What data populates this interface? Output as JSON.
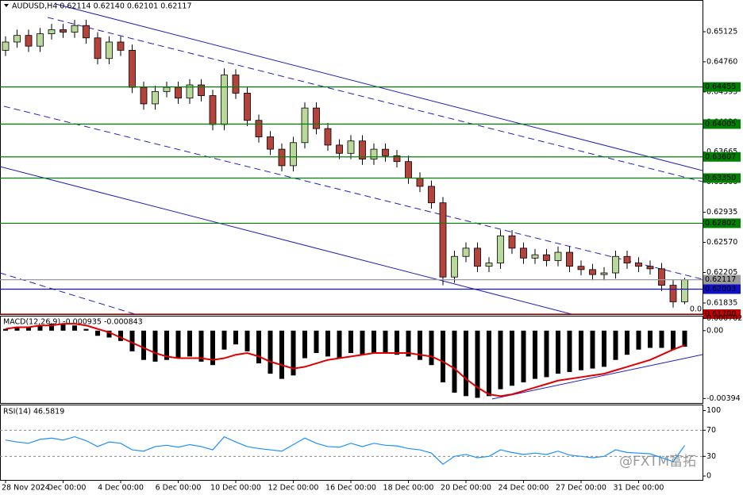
{
  "chart_data": [
    {
      "type": "candlestick",
      "title": "AUDUSD,H4  0.62114 0.62140 0.62101 0.62117",
      "corner_label": "0.0",
      "watermark": "@FXTM富拓",
      "categories": [
        "28 Nov 2024",
        null,
        null,
        null,
        null,
        "2 Dec 00:00",
        null,
        null,
        null,
        null,
        "4 Dec 00:00",
        null,
        null,
        null,
        null,
        "6 Dec 00:00",
        null,
        null,
        null,
        null,
        "10 Dec 00:00",
        null,
        null,
        null,
        null,
        "12 Dec 00:00",
        null,
        null,
        null,
        null,
        "16 Dec 00:00",
        null,
        null,
        null,
        null,
        "18 Dec 00:00",
        null,
        null,
        null,
        null,
        "20 Dec 00:00",
        null,
        null,
        null,
        null,
        "24 Dec 00:00",
        null,
        null,
        null,
        null,
        "27 Dec 00:00",
        null,
        null,
        null,
        null,
        "31 Dec 00:00",
        null,
        null,
        null,
        null
      ],
      "open": [
        0.649,
        0.65,
        0.6508,
        0.6495,
        0.651,
        0.6515,
        0.6512,
        0.652,
        0.6505,
        0.648,
        0.65,
        0.649,
        0.6445,
        0.6425,
        0.644,
        0.6445,
        0.6432,
        0.6448,
        0.6435,
        0.64,
        0.646,
        0.6438,
        0.6405,
        0.6385,
        0.637,
        0.635,
        0.6378,
        0.642,
        0.6395,
        0.6375,
        0.6365,
        0.638,
        0.6358,
        0.637,
        0.6362,
        0.6355,
        0.6335,
        0.6325,
        0.6305,
        0.6215,
        0.624,
        0.625,
        0.6228,
        0.6232,
        0.6265,
        0.625,
        0.6238,
        0.6242,
        0.6235,
        0.6245,
        0.6228,
        0.6224,
        0.6218,
        0.622,
        0.624,
        0.6232,
        0.6228,
        0.6225,
        0.6205,
        0.6185
      ],
      "high": [
        0.6507,
        0.6515,
        0.6515,
        0.6517,
        0.6522,
        0.6522,
        0.6527,
        0.6527,
        0.6512,
        0.6507,
        0.6507,
        0.6497,
        0.6452,
        0.6447,
        0.6452,
        0.6452,
        0.6455,
        0.6455,
        0.6442,
        0.6468,
        0.6467,
        0.6445,
        0.6412,
        0.6392,
        0.6377,
        0.6385,
        0.6427,
        0.6427,
        0.6402,
        0.6382,
        0.6387,
        0.6387,
        0.6377,
        0.6377,
        0.6369,
        0.6362,
        0.6342,
        0.6332,
        0.6312,
        0.6247,
        0.6257,
        0.6257,
        0.6239,
        0.6272,
        0.6272,
        0.6257,
        0.6249,
        0.6249,
        0.6252,
        0.6252,
        0.6235,
        0.6231,
        0.6227,
        0.6247,
        0.6247,
        0.6239,
        0.6235,
        0.6232,
        0.6212,
        0.6214
      ],
      "low": [
        0.6483,
        0.6493,
        0.6488,
        0.6488,
        0.6503,
        0.6505,
        0.6505,
        0.6498,
        0.6473,
        0.6473,
        0.6483,
        0.6438,
        0.6418,
        0.6418,
        0.6433,
        0.6425,
        0.6425,
        0.6428,
        0.6393,
        0.6393,
        0.6431,
        0.6398,
        0.6378,
        0.6363,
        0.6343,
        0.6343,
        0.6371,
        0.6388,
        0.6368,
        0.6358,
        0.6358,
        0.6351,
        0.6351,
        0.6355,
        0.6348,
        0.6328,
        0.6318,
        0.6298,
        0.6205,
        0.6208,
        0.6233,
        0.6221,
        0.6221,
        0.6225,
        0.6243,
        0.6231,
        0.6231,
        0.6228,
        0.6228,
        0.6221,
        0.6217,
        0.6211,
        0.6211,
        0.6213,
        0.6225,
        0.6221,
        0.6218,
        0.6198,
        0.6178,
        0.6182
      ],
      "close": [
        0.65,
        0.6508,
        0.6495,
        0.651,
        0.6515,
        0.6512,
        0.652,
        0.6505,
        0.648,
        0.65,
        0.649,
        0.6445,
        0.6425,
        0.644,
        0.6445,
        0.6432,
        0.6448,
        0.6435,
        0.64,
        0.646,
        0.6438,
        0.6405,
        0.6385,
        0.637,
        0.635,
        0.6378,
        0.642,
        0.6395,
        0.6375,
        0.6365,
        0.638,
        0.6358,
        0.637,
        0.6362,
        0.6355,
        0.6335,
        0.6325,
        0.6305,
        0.6215,
        0.624,
        0.625,
        0.6228,
        0.6232,
        0.6265,
        0.625,
        0.6238,
        0.6242,
        0.6235,
        0.6245,
        0.6228,
        0.6224,
        0.6218,
        0.622,
        0.624,
        0.6232,
        0.6228,
        0.6225,
        0.6205,
        0.6185,
        0.62117
      ],
      "up_color": "#b9d99a",
      "down_color": "#b4433c",
      "ylim": [
        0.617,
        0.655
      ],
      "yticks": [
        0.65125,
        {
          "value": 0.6476,
          "label": "0.64760"
        },
        0.64395,
        {
          "value": 0.6403,
          "label": "0.64030"
        },
        0.63665,
        {
          "value": 0.633,
          "label": "0.63300"
        },
        0.62935,
        {
          "value": 0.6257,
          "label": "0.62570"
        },
        0.62205,
        0.61835
      ],
      "levels": [
        {
          "value": 0.64455,
          "color": "#008000",
          "text_color": "#000000"
        },
        {
          "value": 0.64005,
          "color": "#008000",
          "text_color": "#000000"
        },
        {
          "value": 0.63607,
          "color": "#008000",
          "text_color": "#000000"
        },
        {
          "value": 0.6335,
          "label": "0.63350",
          "color": "#008000",
          "text_color": "#000000"
        },
        {
          "value": 0.62802,
          "color": "#008000",
          "text_color": "#000000"
        },
        {
          "value": 0.62117,
          "color": "#9a9a9a",
          "text_color": "#000000"
        },
        {
          "value": 0.62003,
          "color": "#1010c8",
          "text_color": "#ffffff"
        },
        {
          "value": 0.617,
          "label": "0.61700",
          "color": "#c80000",
          "text_color": "#ffffff"
        }
      ]
    },
    {
      "type": "bar",
      "title": "MACD(12,26,9) -0.000935 -0.000843",
      "values": [
        0.0001,
        0.0002,
        0.0002,
        0.0003,
        0.0004,
        0.0004,
        0.0003,
        0.0001,
        -0.0003,
        -0.0004,
        -0.0006,
        -0.0012,
        -0.0017,
        -0.0018,
        -0.0017,
        -0.0016,
        -0.0015,
        -0.0018,
        -0.002,
        -0.0011,
        -0.0008,
        -0.0012,
        -0.0019,
        -0.0025,
        -0.0028,
        -0.0026,
        -0.0016,
        -0.0013,
        -0.0015,
        -0.0016,
        -0.0013,
        -0.0014,
        -0.0013,
        -0.0013,
        -0.0014,
        -0.0015,
        -0.0017,
        -0.002,
        -0.003,
        -0.0036,
        -0.0038,
        -0.0039,
        -0.0038,
        -0.0034,
        -0.0032,
        -0.003,
        -0.0028,
        -0.0027,
        -0.0025,
        -0.0024,
        -0.0023,
        -0.0022,
        -0.0021,
        -0.0017,
        -0.0014,
        -0.0011,
        -0.001,
        -0.001,
        -0.0011,
        -0.000935
      ],
      "color": "#000000",
      "signal": {
        "values": [
          0.0001,
          0.0002,
          0.0002,
          0.0003,
          0.0003,
          0.0004,
          0.0004,
          0.0003,
          0.0001,
          -0.0001,
          -0.0004,
          -0.0007,
          -0.001,
          -0.0013,
          -0.0015,
          -0.0016,
          -0.0016,
          -0.0016,
          -0.0017,
          -0.0016,
          -0.0014,
          -0.0013,
          -0.0015,
          -0.0018,
          -0.002,
          -0.0022,
          -0.0021,
          -0.0019,
          -0.0017,
          -0.0016,
          -0.0015,
          -0.0014,
          -0.0013,
          -0.0013,
          -0.0013,
          -0.0013,
          -0.0014,
          -0.0015,
          -0.0018,
          -0.0022,
          -0.0028,
          -0.0033,
          -0.0037,
          -0.0038,
          -0.0037,
          -0.0035,
          -0.0033,
          -0.0031,
          -0.0029,
          -0.0028,
          -0.0027,
          -0.0026,
          -0.0025,
          -0.0023,
          -0.0021,
          -0.0019,
          -0.0017,
          -0.0014,
          -0.0011,
          -0.000843
        ],
        "color": "#e00000"
      },
      "ylim": [
        -0.0042,
        0.00082
      ],
      "yticks": [
        0.000702,
        {
          "value": 0,
          "label": "0.00"
        },
        -0.00394
      ]
    },
    {
      "type": "line",
      "title": "RSI(14) 46.5819",
      "values": [
        55,
        52,
        50,
        56,
        58,
        55,
        60,
        54,
        45,
        52,
        50,
        40,
        38,
        45,
        47,
        44,
        48,
        45,
        40,
        60,
        52,
        45,
        42,
        40,
        38,
        48,
        58,
        50,
        45,
        44,
        50,
        45,
        50,
        47,
        46,
        42,
        40,
        35,
        18,
        30,
        33,
        28,
        30,
        40,
        36,
        33,
        35,
        33,
        38,
        32,
        30,
        28,
        30,
        40,
        36,
        35,
        34,
        28,
        22,
        46.5819
      ],
      "color": "#1e90ff",
      "ylim": [
        -6,
        108
      ],
      "yticks": [
        100,
        70,
        30,
        0
      ]
    }
  ]
}
